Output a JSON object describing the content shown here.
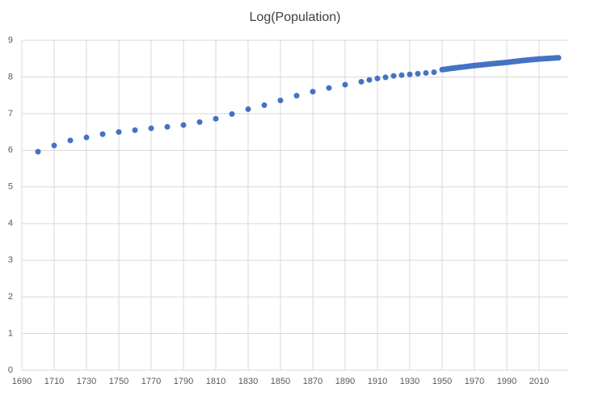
{
  "chart_data": {
    "type": "scatter",
    "title": "Log(Population)",
    "x": [
      1700,
      1710,
      1720,
      1730,
      1740,
      1750,
      1760,
      1770,
      1780,
      1790,
      1800,
      1810,
      1820,
      1830,
      1840,
      1850,
      1860,
      1870,
      1880,
      1890,
      1900,
      1905,
      1910,
      1915,
      1920,
      1925,
      1930,
      1935,
      1940,
      1945,
      1950,
      1951,
      1952,
      1953,
      1954,
      1955,
      1956,
      1957,
      1958,
      1959,
      1960,
      1961,
      1962,
      1963,
      1964,
      1965,
      1966,
      1967,
      1968,
      1969,
      1970,
      1971,
      1972,
      1973,
      1974,
      1975,
      1976,
      1977,
      1978,
      1979,
      1980,
      1981,
      1982,
      1983,
      1984,
      1985,
      1986,
      1987,
      1988,
      1989,
      1990,
      1991,
      1992,
      1993,
      1994,
      1995,
      1996,
      1997,
      1998,
      1999,
      2000,
      2001,
      2002,
      2003,
      2004,
      2005,
      2006,
      2007,
      2008,
      2009,
      2010,
      2011,
      2012,
      2013,
      2014,
      2015,
      2016,
      2017,
      2018,
      2019,
      2020,
      2021,
      2022
    ],
    "values": [
      5.96,
      6.13,
      6.27,
      6.35,
      6.44,
      6.5,
      6.55,
      6.6,
      6.64,
      6.69,
      6.77,
      6.86,
      6.99,
      7.12,
      7.23,
      7.36,
      7.49,
      7.6,
      7.7,
      7.79,
      7.87,
      7.92,
      7.96,
      7.99,
      8.03,
      8.05,
      8.07,
      8.09,
      8.11,
      8.13,
      8.199,
      8.205,
      8.211,
      8.217,
      8.223,
      8.229,
      8.235,
      8.24,
      8.246,
      8.252,
      8.258,
      8.263,
      8.269,
      8.274,
      8.28,
      8.285,
      8.29,
      8.296,
      8.301,
      8.307,
      8.312,
      8.316,
      8.321,
      8.325,
      8.33,
      8.334,
      8.338,
      8.343,
      8.347,
      8.352,
      8.356,
      8.36,
      8.364,
      8.369,
      8.373,
      8.377,
      8.381,
      8.385,
      8.39,
      8.394,
      8.398,
      8.403,
      8.408,
      8.414,
      8.419,
      8.424,
      8.429,
      8.434,
      8.44,
      8.445,
      8.45,
      8.454,
      8.458,
      8.462,
      8.466,
      8.47,
      8.474,
      8.478,
      8.482,
      8.486,
      8.49,
      8.493,
      8.496,
      8.499,
      8.502,
      8.505,
      8.508,
      8.511,
      8.514,
      8.517,
      8.52,
      8.521,
      8.523
    ],
    "color": "#4472c4",
    "xlim": [
      1690,
      2028
    ],
    "xticks": [
      1690,
      1710,
      1730,
      1750,
      1770,
      1790,
      1810,
      1830,
      1850,
      1870,
      1890,
      1910,
      1930,
      1950,
      1970,
      1990,
      2010
    ],
    "ylim": [
      0,
      9
    ],
    "yticks": [
      0,
      1,
      2,
      3,
      4,
      5,
      6,
      7,
      8,
      9
    ],
    "grid": true
  }
}
